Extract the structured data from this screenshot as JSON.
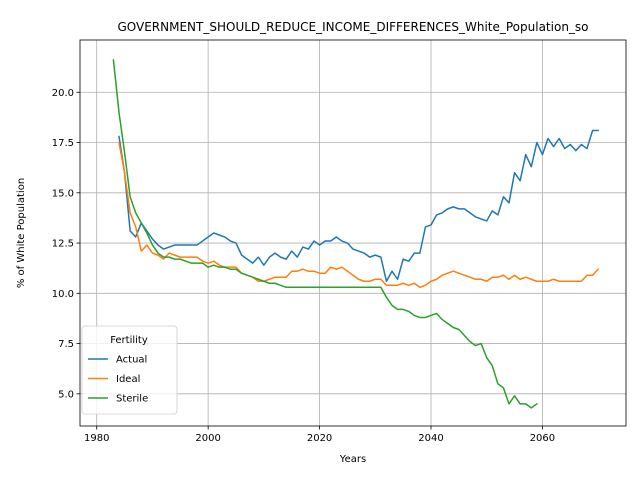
{
  "chart_data": {
    "type": "line",
    "title": "GOVERNMENT_SHOULD_REDUCE_INCOME_DIFFERENCES_White_Population_so",
    "xlabel": "Years",
    "ylabel": "% of White Population",
    "xlim": [
      1977,
      2075
    ],
    "ylim": [
      3.4,
      22.6
    ],
    "xticks": [
      1980,
      2000,
      2020,
      2040,
      2060
    ],
    "yticks": [
      5.0,
      7.5,
      10.0,
      12.5,
      15.0,
      17.5,
      20.0
    ],
    "xtick_labels": [
      "1980",
      "2000",
      "2020",
      "2040",
      "2060"
    ],
    "ytick_labels": [
      "5.0",
      "7.5",
      "10.0",
      "12.5",
      "15.0",
      "17.5",
      "20.0"
    ],
    "grid": true,
    "legend": {
      "title": "Fertility",
      "placement": "lower-left"
    },
    "series": [
      {
        "name": "Actual",
        "color": "#1f77b4",
        "x": [
          1984,
          1985,
          1986,
          1987,
          1988,
          1989,
          1990,
          1991,
          1992,
          1993,
          1994,
          1995,
          1996,
          1997,
          1998,
          1999,
          2000,
          2001,
          2002,
          2003,
          2004,
          2005,
          2006,
          2007,
          2008,
          2009,
          2010,
          2011,
          2012,
          2013,
          2014,
          2015,
          2016,
          2017,
          2018,
          2019,
          2020,
          2021,
          2022,
          2023,
          2024,
          2025,
          2026,
          2027,
          2028,
          2029,
          2030,
          2031,
          2032,
          2033,
          2034,
          2035,
          2036,
          2037,
          2038,
          2039,
          2040,
          2041,
          2042,
          2043,
          2044,
          2045,
          2046,
          2047,
          2048,
          2049,
          2050,
          2051,
          2052,
          2053,
          2054,
          2055,
          2056,
          2057,
          2058,
          2059,
          2060,
          2061,
          2062,
          2063,
          2064,
          2065,
          2066,
          2067,
          2068,
          2069,
          2070
        ],
        "values": [
          17.8,
          16.0,
          13.1,
          12.8,
          13.5,
          13.1,
          12.7,
          12.4,
          12.2,
          12.3,
          12.4,
          12.4,
          12.4,
          12.4,
          12.4,
          12.6,
          12.8,
          13.0,
          12.9,
          12.8,
          12.6,
          12.5,
          11.9,
          11.7,
          11.5,
          11.8,
          11.4,
          11.8,
          12.0,
          11.8,
          11.7,
          12.1,
          11.8,
          12.3,
          12.2,
          12.6,
          12.4,
          12.6,
          12.6,
          12.8,
          12.6,
          12.5,
          12.2,
          12.1,
          12.0,
          11.8,
          11.9,
          11.8,
          10.6,
          11.1,
          10.7,
          11.7,
          11.6,
          12.0,
          12.0,
          13.3,
          13.4,
          13.9,
          14.0,
          14.2,
          14.3,
          14.2,
          14.2,
          14.0,
          13.8,
          13.7,
          13.6,
          14.1,
          13.9,
          14.8,
          14.5,
          16.0,
          15.6,
          16.9,
          16.3,
          17.5,
          16.9,
          17.7,
          17.3,
          17.7,
          17.2,
          17.4,
          17.1,
          17.4,
          17.2,
          18.1,
          18.1
        ]
      },
      {
        "name": "Ideal",
        "color": "#ff7f0e",
        "x": [
          1984,
          1985,
          1986,
          1987,
          1988,
          1989,
          1990,
          1991,
          1992,
          1993,
          1994,
          1995,
          1996,
          1997,
          1998,
          1999,
          2000,
          2001,
          2002,
          2003,
          2004,
          2005,
          2006,
          2007,
          2008,
          2009,
          2010,
          2011,
          2012,
          2013,
          2014,
          2015,
          2016,
          2017,
          2018,
          2019,
          2020,
          2021,
          2022,
          2023,
          2024,
          2025,
          2026,
          2027,
          2028,
          2029,
          2030,
          2031,
          2032,
          2033,
          2034,
          2035,
          2036,
          2037,
          2038,
          2039,
          2040,
          2041,
          2042,
          2043,
          2044,
          2045,
          2046,
          2047,
          2048,
          2049,
          2050,
          2051,
          2052,
          2053,
          2054,
          2055,
          2056,
          2057,
          2058,
          2059,
          2060,
          2061,
          2062,
          2063,
          2064,
          2065,
          2066,
          2067,
          2068,
          2069,
          2070
        ],
        "values": [
          17.5,
          16.0,
          14.0,
          13.3,
          12.1,
          12.4,
          12.0,
          11.9,
          11.7,
          12.0,
          11.9,
          11.8,
          11.8,
          11.8,
          11.8,
          11.6,
          11.5,
          11.6,
          11.4,
          11.3,
          11.3,
          11.3,
          11.0,
          10.9,
          10.8,
          10.6,
          10.6,
          10.7,
          10.8,
          10.8,
          10.8,
          11.1,
          11.1,
          11.2,
          11.1,
          11.1,
          11.0,
          11.0,
          11.3,
          11.2,
          11.3,
          11.1,
          10.9,
          10.7,
          10.6,
          10.6,
          10.7,
          10.7,
          10.4,
          10.4,
          10.4,
          10.5,
          10.4,
          10.5,
          10.3,
          10.4,
          10.6,
          10.7,
          10.9,
          11.0,
          11.1,
          11.0,
          10.9,
          10.8,
          10.7,
          10.7,
          10.6,
          10.8,
          10.8,
          10.9,
          10.7,
          10.9,
          10.7,
          10.8,
          10.7,
          10.6,
          10.6,
          10.6,
          10.7,
          10.6,
          10.6,
          10.6,
          10.6,
          10.6,
          10.9,
          10.9,
          11.2
        ]
      },
      {
        "name": "Sterile",
        "color": "#2ca02c",
        "x": [
          1983,
          1984,
          1985,
          1986,
          1987,
          1988,
          1989,
          1990,
          1991,
          1992,
          1993,
          1994,
          1995,
          1996,
          1997,
          1998,
          1999,
          2000,
          2001,
          2002,
          2003,
          2004,
          2005,
          2006,
          2007,
          2008,
          2009,
          2010,
          2011,
          2012,
          2013,
          2014,
          2015,
          2016,
          2017,
          2018,
          2019,
          2020,
          2021,
          2022,
          2023,
          2024,
          2025,
          2026,
          2027,
          2028,
          2029,
          2030,
          2031,
          2032,
          2033,
          2034,
          2035,
          2036,
          2037,
          2038,
          2039,
          2040,
          2041,
          2042,
          2043,
          2044,
          2045,
          2046,
          2047,
          2048,
          2049,
          2050,
          2051,
          2052,
          2053,
          2054,
          2055,
          2056,
          2057,
          2058,
          2059
        ],
        "values": [
          21.6,
          19.0,
          17.0,
          14.8,
          14.0,
          13.5,
          13.0,
          12.4,
          12.0,
          11.8,
          11.8,
          11.7,
          11.7,
          11.6,
          11.5,
          11.5,
          11.5,
          11.3,
          11.4,
          11.3,
          11.3,
          11.2,
          11.2,
          11.0,
          10.9,
          10.8,
          10.7,
          10.6,
          10.5,
          10.5,
          10.4,
          10.3,
          10.3,
          10.3,
          10.3,
          10.3,
          10.3,
          10.3,
          10.3,
          10.3,
          10.3,
          10.3,
          10.3,
          10.3,
          10.3,
          10.3,
          10.3,
          10.3,
          10.3,
          9.8,
          9.4,
          9.2,
          9.2,
          9.1,
          8.9,
          8.8,
          8.8,
          8.9,
          9.0,
          8.7,
          8.5,
          8.3,
          8.2,
          7.9,
          7.6,
          7.4,
          7.5,
          6.8,
          6.4,
          5.5,
          5.3,
          4.5,
          4.9,
          4.5,
          4.5,
          4.3,
          4.5
        ]
      }
    ]
  }
}
